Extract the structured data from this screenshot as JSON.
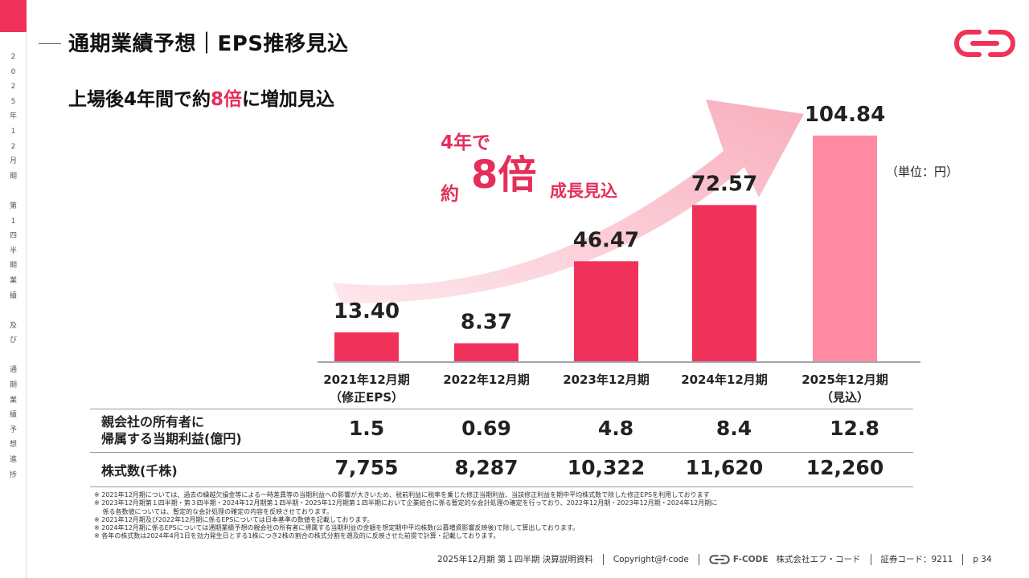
{
  "sidebar": {
    "vertical_text": [
      "2",
      "0",
      "2",
      "5",
      "年",
      "1",
      "2",
      "月",
      "期",
      "",
      "第",
      "1",
      "四",
      "半",
      "期",
      "業",
      "績",
      "",
      "及",
      "び",
      "",
      "通",
      "期",
      "業",
      "績",
      "予",
      "想",
      "進",
      "捗"
    ]
  },
  "header": {
    "title": "通期業績予想｜EPS推移見込"
  },
  "subtitle": {
    "prefix": "上場後4年間で約",
    "highlight": "8倍",
    "suffix": "に増加見込"
  },
  "callout": {
    "line1": "4年で",
    "yaku": "約",
    "big": "8倍",
    "growth": "成長見込"
  },
  "unit_label": "（単位：円）",
  "chart_data": {
    "type": "bar",
    "categories": [
      "2021年12月期\n（修正EPS）",
      "2022年12月期",
      "2023年12月期",
      "2024年12月期",
      "2025年12月期\n（見込）"
    ],
    "values": [
      13.4,
      8.37,
      46.47,
      72.57,
      104.84
    ],
    "value_labels": [
      "13.40",
      "8.37",
      "46.47",
      "72.57",
      "104.84"
    ],
    "colors": [
      "#f0325a",
      "#f0325a",
      "#f0325a",
      "#f0325a",
      "#ff8aa2"
    ],
    "ylim": [
      0,
      110
    ]
  },
  "table": {
    "rows": [
      {
        "label_line1": "親会社の所有者に",
        "label_line2": "帰属する当期利益(億円)",
        "values": [
          "1.5",
          "0.69",
          "4.8",
          "8.4",
          "12.8"
        ]
      },
      {
        "label_line1": "株式数(千株)",
        "label_line2": "",
        "values": [
          "7,755",
          "8,287",
          "10,322",
          "11,620",
          "12,260"
        ]
      }
    ]
  },
  "notes": [
    "※ 2021年12月期については、過去の繰越欠損金等による一時差異等の当期利益への影響が大きいため、税前利益に税率を乗じた修正当期利益、当該修正利益を期中平均株式数で除した修正EPSを利用しております",
    "※ 2023年12月期第１四半期・第３四半期・2024年12月期第１四半期・2025年12月期第１四半期において企業結合に係る暫定的な会計処理の確定を行っており、2022年12月期・2023年12月期・2024年12月期に",
    "　 係る各数値については、暫定的な会計処理の確定の内容を反映させております。",
    "※ 2021年12月期及び2022年12月期に係るEPSについては日本基準の数値を記載しております。",
    "※ 2024年12月期に係るEPSについては通期業績予想の親会社の所有者に帰属する当期利益の金額を想定期中平均株数(公募増資影響反映後)で除して算出しております。",
    "※ 各年の株式数は2024年4月1日を効力発生日とする1株につき2株の割合の株式分割を遡及的に反映させた前提で計算・記載しております。"
  ],
  "footer": {
    "doc": "2025年12月期 第１四半期 決算説明資料",
    "copyright": "Copyright@f-code",
    "brand": "F-CODE",
    "company": "株式会社エフ・コード",
    "code": "証券コード：9211",
    "page": "p 34"
  },
  "brand_color": "#f0325a"
}
